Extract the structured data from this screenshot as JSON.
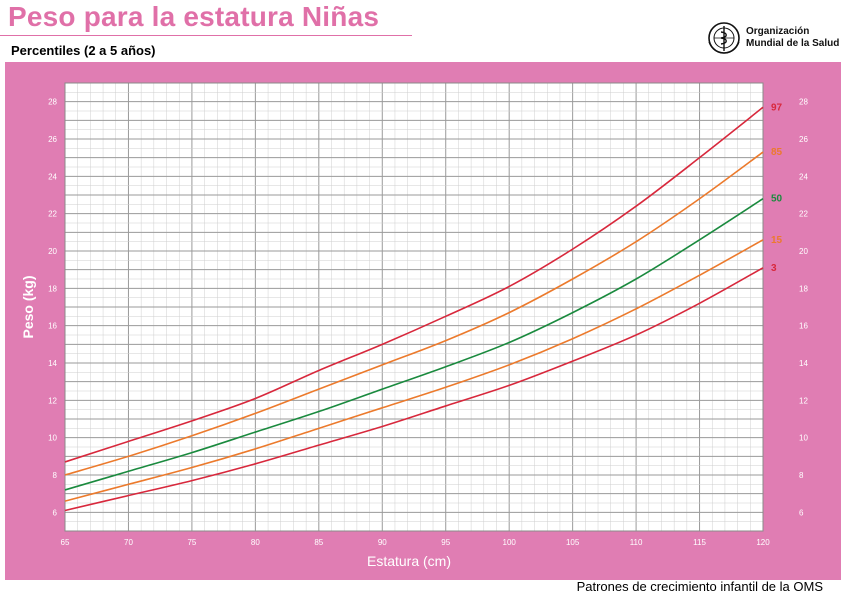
{
  "header": {
    "title": "Peso para la estatura Niñas",
    "subtitle": "Percentiles (2 a 5 años)",
    "org_line1": "Organización",
    "org_line2": "Mundial de la Salud"
  },
  "footer": {
    "text": "Patrones de crecimiento infantil de la OMS"
  },
  "colors": {
    "frame": "#e07db3",
    "grid_major": "#9a9a9a",
    "grid_minor": "#cfcfcf",
    "p97": "#d8283c",
    "p85": "#ec7a2c",
    "p50": "#1a8a3e",
    "p15": "#ec7a2c",
    "p3": "#d8283c"
  },
  "chart_data": {
    "type": "line",
    "title": "Peso para la estatura Niñas",
    "subtitle": "Percentiles (2 a 5 años)",
    "xlabel": "Estatura (cm)",
    "ylabel": "Peso (kg)",
    "xlim": [
      65,
      120
    ],
    "ylim": [
      5,
      29
    ],
    "x_ticks": [
      65,
      70,
      75,
      80,
      85,
      90,
      95,
      100,
      105,
      110,
      115,
      120
    ],
    "y_ticks": [
      6,
      8,
      10,
      12,
      14,
      16,
      18,
      20,
      22,
      24,
      26,
      28
    ],
    "grid": true,
    "x": [
      65,
      70,
      75,
      80,
      85,
      90,
      95,
      100,
      105,
      110,
      115,
      120
    ],
    "series": [
      {
        "name": "97",
        "color": "#d8283c",
        "values": [
          8.7,
          9.8,
          10.9,
          12.1,
          13.6,
          15.0,
          16.5,
          18.1,
          20.1,
          22.4,
          25.0,
          27.7
        ]
      },
      {
        "name": "85",
        "color": "#ec7a2c",
        "values": [
          8.0,
          9.0,
          10.1,
          11.3,
          12.6,
          13.9,
          15.2,
          16.7,
          18.5,
          20.5,
          22.8,
          25.3
        ]
      },
      {
        "name": "50",
        "color": "#1a8a3e",
        "values": [
          7.2,
          8.2,
          9.2,
          10.3,
          11.4,
          12.6,
          13.8,
          15.1,
          16.7,
          18.5,
          20.6,
          22.8
        ]
      },
      {
        "name": "15",
        "color": "#ec7a2c",
        "values": [
          6.6,
          7.5,
          8.4,
          9.4,
          10.5,
          11.6,
          12.7,
          13.9,
          15.3,
          16.9,
          18.7,
          20.6
        ]
      },
      {
        "name": "3",
        "color": "#d8283c",
        "values": [
          6.1,
          6.9,
          7.7,
          8.6,
          9.6,
          10.6,
          11.7,
          12.8,
          14.1,
          15.5,
          17.2,
          19.1
        ]
      }
    ]
  }
}
